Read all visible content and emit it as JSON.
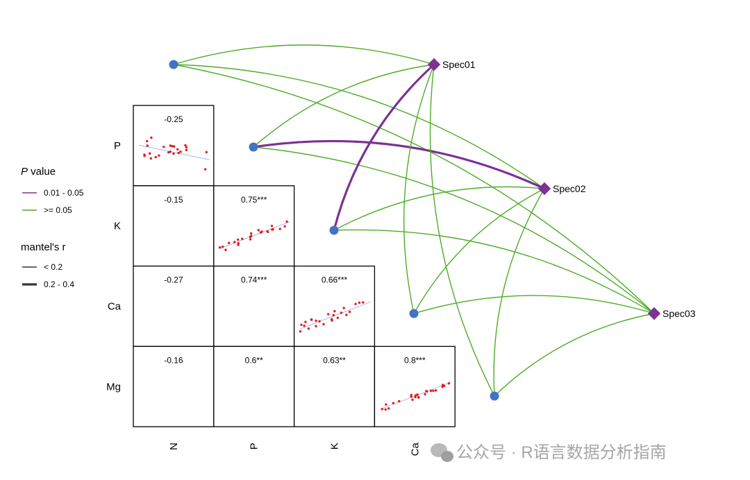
{
  "chart_data": {
    "type": "correlogram-mantel-network",
    "variables": [
      "N",
      "P",
      "K",
      "Ca",
      "Mg"
    ],
    "row_labels": [
      "P",
      "K",
      "Ca",
      "Mg"
    ],
    "col_labels": [
      "N",
      "P",
      "K",
      "Ca"
    ],
    "correlations": [
      {
        "row": "P",
        "col": "N",
        "r": -0.25,
        "label": "-0.25",
        "scatter": true
      },
      {
        "row": "K",
        "col": "N",
        "r": -0.15,
        "label": "-0.15",
        "scatter": false
      },
      {
        "row": "K",
        "col": "P",
        "r": 0.75,
        "label": "0.75***",
        "scatter": true
      },
      {
        "row": "Ca",
        "col": "N",
        "r": -0.27,
        "label": "-0.27",
        "scatter": false
      },
      {
        "row": "Ca",
        "col": "P",
        "r": 0.74,
        "label": "0.74***",
        "scatter": false
      },
      {
        "row": "Ca",
        "col": "K",
        "r": 0.66,
        "label": "0.66***",
        "scatter": true
      },
      {
        "row": "Mg",
        "col": "N",
        "r": -0.16,
        "label": "-0.16",
        "scatter": false
      },
      {
        "row": "Mg",
        "col": "P",
        "r": 0.6,
        "label": "0.6**",
        "scatter": false
      },
      {
        "row": "Mg",
        "col": "K",
        "r": 0.63,
        "label": "0.63**",
        "scatter": false
      },
      {
        "row": "Mg",
        "col": "Ca",
        "r": 0.8,
        "label": "0.8***",
        "scatter": true
      }
    ],
    "species": [
      "Spec01",
      "Spec02",
      "Spec03"
    ],
    "mantel_links": [
      {
        "spec": "Spec01",
        "var": "N",
        "p_class": "p2",
        "r_class": "r1"
      },
      {
        "spec": "Spec02",
        "var": "N",
        "p_class": "p2",
        "r_class": "r1"
      },
      {
        "spec": "Spec03",
        "var": "N",
        "p_class": "p2",
        "r_class": "r1"
      },
      {
        "spec": "Spec01",
        "var": "P",
        "p_class": "p2",
        "r_class": "r1"
      },
      {
        "spec": "Spec02",
        "var": "P",
        "p_class": "p1",
        "r_class": "r2"
      },
      {
        "spec": "Spec03",
        "var": "P",
        "p_class": "p2",
        "r_class": "r1"
      },
      {
        "spec": "Spec01",
        "var": "K",
        "p_class": "p1",
        "r_class": "r2"
      },
      {
        "spec": "Spec02",
        "var": "K",
        "p_class": "p2",
        "r_class": "r1"
      },
      {
        "spec": "Spec03",
        "var": "K",
        "p_class": "p2",
        "r_class": "r1"
      },
      {
        "spec": "Spec01",
        "var": "Ca",
        "p_class": "p2",
        "r_class": "r1"
      },
      {
        "spec": "Spec02",
        "var": "Ca",
        "p_class": "p2",
        "r_class": "r1"
      },
      {
        "spec": "Spec03",
        "var": "Ca",
        "p_class": "p2",
        "r_class": "r1"
      },
      {
        "spec": "Spec01",
        "var": "Mg",
        "p_class": "p2",
        "r_class": "r1"
      },
      {
        "spec": "Spec02",
        "var": "Mg",
        "p_class": "p2",
        "r_class": "r1"
      },
      {
        "spec": "Spec03",
        "var": "Mg",
        "p_class": "p2",
        "r_class": "r1"
      }
    ],
    "legend": {
      "p_title_italic": "P",
      "p_title_rest": " value",
      "p_items": [
        {
          "key": "p1",
          "label": "0.01 - 0.05",
          "color": "#7B3294"
        },
        {
          "key": "p2",
          "label": ">= 0.05",
          "color": "#4DAC26"
        }
      ],
      "r_title": "mantel's r",
      "r_items": [
        {
          "key": "r1",
          "label": "< 0.2"
        },
        {
          "key": "r2",
          "label": "0.2 - 0.4"
        }
      ],
      "placement": "left"
    },
    "colors": {
      "node_variable": "#4472C4",
      "node_species": "#7B3294",
      "scatter_points": "#E41A1C",
      "trend_line": "#A9B8E8"
    },
    "watermark": "公众号 · R语言数据分析指南"
  }
}
